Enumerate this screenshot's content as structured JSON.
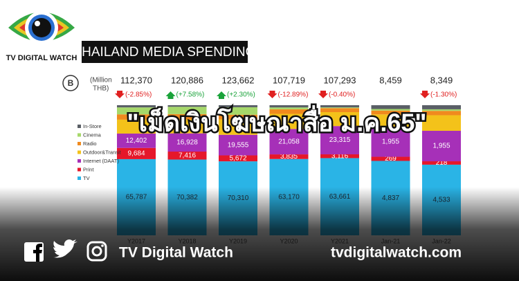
{
  "header": {
    "brand": "TV DIGITAL WATCH",
    "banner": "THAILAND MEDIA SPENDING"
  },
  "chart_data": {
    "type": "bar",
    "stacked": true,
    "badge": "B",
    "unit_lines": [
      "(Million",
      "THB)"
    ],
    "categories": [
      "Y2017",
      "Y2018",
      "Y2019",
      "Y2020",
      "Y2021",
      "Jan-21",
      "Jan-22"
    ],
    "totals": {
      "values": [
        112370,
        120886,
        123662,
        107719,
        107293,
        8459,
        8349
      ],
      "value_labels": [
        "112,370",
        "120,886",
        "123,662",
        "107,719",
        "107,293",
        "8,459",
        "8,349"
      ]
    },
    "changes": {
      "values": [
        -2.85,
        7.58,
        2.3,
        -12.89,
        -0.4,
        null,
        -1.3
      ],
      "value_labels": [
        "(-2.85%)",
        "(+7.58%)",
        "(+2.30%)",
        "(-12.89%)",
        "(-0.40%)",
        null,
        "(-1.30%)"
      ],
      "up_color": "#1aa33a",
      "down_color": "#e02020"
    },
    "series": [
      {
        "name": "TV",
        "color": "#2ab4e6",
        "label_color": "#1d2a35",
        "values": [
          65787,
          70382,
          70310,
          63170,
          63661,
          4837,
          4533
        ],
        "value_labels": [
          "65,787",
          "70,382",
          "70,310",
          "63,170",
          "63,661",
          "4,837",
          "4,533"
        ]
      },
      {
        "name": "Print",
        "color": "#e5172a",
        "label_color": "#ffffff",
        "values": [
          9684,
          7416,
          5672,
          3835,
          3116,
          269,
          218
        ],
        "value_labels": [
          "9,684",
          "7,416",
          "5,672",
          "3,835",
          "3,116",
          "269",
          "218"
        ]
      },
      {
        "name": "Internet (DAAT)",
        "color": "#a630b8",
        "label_color": "#ffffff",
        "values": [
          12402,
          16928,
          19555,
          21058,
          23315,
          1955,
          1955
        ],
        "value_labels": [
          "12,402",
          "16,928",
          "19,555",
          "21,058",
          "23,315",
          "1,955",
          "1,955"
        ]
      },
      {
        "name": "Outdoor&Transit",
        "color": "#f3c21a",
        "label_color": "#333333",
        "values": [
          12000,
          13000,
          14600,
          12500,
          11500,
          800,
          1000
        ]
      },
      {
        "name": "Radio",
        "color": "#f08a1e",
        "label_color": "#333333",
        "values": [
          4600,
          4900,
          4500,
          3800,
          3300,
          250,
          280
        ]
      },
      {
        "name": "Cinema",
        "color": "#a6d86a",
        "label_color": "#333333",
        "values": [
          6000,
          6800,
          7100,
          1500,
          600,
          100,
          100
        ]
      },
      {
        "name": "In-Store",
        "color": "#5a5f66",
        "label_color": "#ffffff",
        "values": [
          1897,
          1460,
          1925,
          1856,
          1801,
          248,
          263
        ]
      }
    ]
  },
  "overlay_title": "\"เม็ดเงินโฆษณาสื่อ ม.ค.65\"",
  "footer": {
    "name": "TV Digital Watch",
    "website": "tvdigitalwatch.com"
  }
}
